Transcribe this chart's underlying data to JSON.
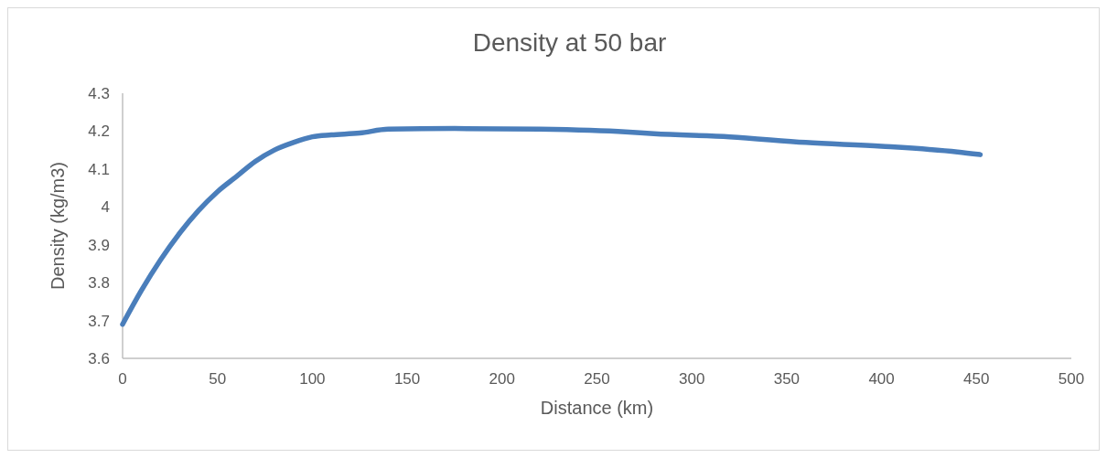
{
  "chart_data": {
    "type": "line",
    "title": "Density at 50 bar",
    "xlabel": "Distance (km)",
    "ylabel": "Density (kg/m3)",
    "xlim": [
      0,
      500
    ],
    "xticks": [
      0,
      50,
      100,
      150,
      200,
      250,
      300,
      350,
      400,
      450,
      500
    ],
    "ylim": [
      3.6,
      4.3
    ],
    "yticks": [
      3.6,
      3.7,
      3.8,
      3.9,
      {
        "value": 4,
        "label": "4"
      },
      4.1,
      4.2,
      4.3
    ],
    "grid": false,
    "marker": "none",
    "line_style": "solid",
    "x": [
      0,
      10,
      20,
      30,
      40,
      50,
      60,
      70,
      80,
      90,
      100,
      110,
      125,
      140,
      175,
      220,
      265,
      280,
      320,
      360,
      400,
      440,
      452
    ],
    "series": [
      {
        "color": "#4a7ebb",
        "values": [
          3.69,
          3.78,
          3.86,
          3.93,
          3.99,
          4.04,
          4.08,
          4.12,
          4.15,
          4.17,
          4.185,
          4.19,
          4.195,
          4.205,
          4.207,
          4.205,
          4.198,
          4.193,
          4.185,
          4.17,
          4.16,
          4.145,
          4.138
        ]
      }
    ]
  }
}
